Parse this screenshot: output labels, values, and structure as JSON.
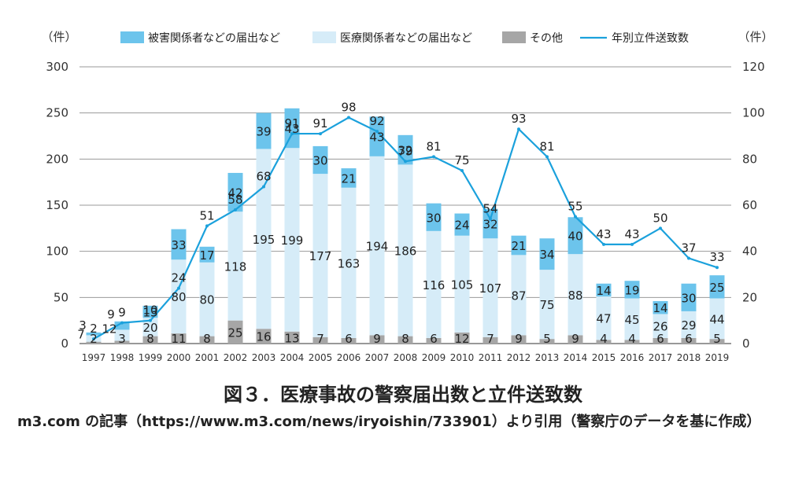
{
  "chart_data": {
    "type": "bar",
    "stacked": true,
    "categories": [
      "1997",
      "1998",
      "1999",
      "2000",
      "2001",
      "2002",
      "2003",
      "2004",
      "2005",
      "2006",
      "2007",
      "2008",
      "2009",
      "2010",
      "2011",
      "2012",
      "2013",
      "2014",
      "2015",
      "2016",
      "2017",
      "2018",
      "2019"
    ],
    "series": [
      {
        "name": "その他",
        "type": "bar",
        "axis": "left",
        "color": "#a6a6a6",
        "values": [
          2,
          3,
          8,
          11,
          8,
          25,
          16,
          13,
          7,
          6,
          9,
          8,
          6,
          12,
          7,
          9,
          5,
          9,
          4,
          4,
          6,
          6,
          5
        ]
      },
      {
        "name": "医療関係者などの届出など",
        "type": "bar",
        "axis": "left",
        "color": "#d6ecf8",
        "values": [
          7,
          12,
          20,
          80,
          80,
          118,
          195,
          199,
          177,
          163,
          194,
          186,
          116,
          105,
          107,
          87,
          75,
          88,
          47,
          45,
          26,
          29,
          44
        ]
      },
      {
        "name": "被害関係者などの届出など",
        "type": "bar",
        "axis": "left",
        "color": "#6cc4ec",
        "values": [
          3,
          9,
          13,
          33,
          17,
          42,
          39,
          43,
          30,
          21,
          43,
          32,
          30,
          24,
          32,
          21,
          34,
          40,
          14,
          19,
          14,
          30,
          25
        ]
      },
      {
        "name": "年別立件送致数",
        "type": "line",
        "axis": "right",
        "color": "#1ba1dc",
        "values": [
          2,
          9,
          10,
          24,
          51,
          58,
          68,
          91,
          91,
          98,
          92,
          79,
          81,
          75,
          54,
          93,
          81,
          55,
          43,
          43,
          50,
          37,
          33
        ]
      }
    ],
    "legend": [
      "被害関係者などの届出など",
      "医療関係者などの届出など",
      "その他",
      "年別立件送致数"
    ],
    "legend_position": "top",
    "y_left": {
      "unit": "（件）",
      "ylim": [
        0,
        300
      ],
      "ticks": [
        0,
        50,
        100,
        150,
        200,
        250,
        300
      ]
    },
    "y_right": {
      "unit": "（件）",
      "ylim": [
        0,
        120
      ],
      "ticks": [
        0,
        20,
        40,
        60,
        80,
        100,
        120
      ]
    },
    "grid": true
  },
  "caption": "図３．医療事故の警察届出数と立件送致数",
  "source": "m3.com の記事（https://www.m3.com/news/iryoishin/733901）より引用（警察庁のデータを基に作成）"
}
